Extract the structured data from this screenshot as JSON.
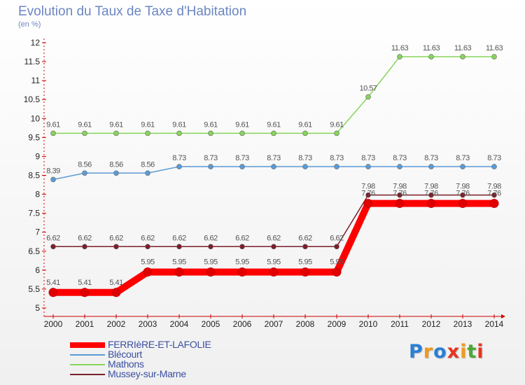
{
  "title": "Evolution du Taux de Taxe d'Habitation",
  "subtitle": "(en %)",
  "logo": {
    "letters": [
      "P",
      "r",
      "o",
      "x",
      "i",
      "t",
      "i"
    ],
    "colors": [
      "#2a7fd4",
      "#f19a1a",
      "#2a7fd4",
      "#e8331e",
      "#f19a1a",
      "#4aa832",
      "#e8331e"
    ]
  },
  "chart_data": {
    "type": "line",
    "title": "Evolution du Taux de Taxe d'Habitation",
    "ylabel": "(en %)",
    "xlabel": "",
    "x": [
      "2000",
      "2001",
      "2002",
      "2003",
      "2004",
      "2005",
      "2006",
      "2007",
      "2008",
      "2009",
      "2010",
      "2011",
      "2012",
      "2013",
      "2014"
    ],
    "ylim": [
      5,
      12
    ],
    "yticks": [
      "5",
      "5.5",
      "6",
      "6.5",
      "7",
      "7.5",
      "8",
      "8.5",
      "9",
      "9.5",
      "10",
      "10.5",
      "11",
      "11.5",
      "12"
    ],
    "grid": false,
    "legend_position": "bottom-left",
    "series": [
      {
        "name": "FERRIèRE-ET-LAFOLIE",
        "color": "#ff0000",
        "width": 10,
        "marker_r": 6,
        "values": [
          5.41,
          5.41,
          5.41,
          5.95,
          5.95,
          5.95,
          5.95,
          5.95,
          5.95,
          5.95,
          7.76,
          7.76,
          7.76,
          7.76,
          7.76
        ],
        "labels": [
          "5.41",
          "5.41",
          "5.41",
          "5.95",
          "5.95",
          "5.95",
          "5.95",
          "5.95",
          "5.95",
          "5.95",
          "7.76",
          "7.76",
          "7.76",
          "7.76",
          "7.76"
        ]
      },
      {
        "name": "Blécourt",
        "color": "#5b9bd5",
        "width": 1.5,
        "marker_r": 3.5,
        "values": [
          8.39,
          8.56,
          8.56,
          8.56,
          8.73,
          8.73,
          8.73,
          8.73,
          8.73,
          8.73,
          8.73,
          8.73,
          8.73,
          8.73,
          8.73
        ],
        "labels": [
          "8.39",
          "8.56",
          "8.56",
          "8.56",
          "8.73",
          "8.73",
          "8.73",
          "8.73",
          "8.73",
          "8.73",
          "8.73",
          "8.73",
          "8.73",
          "8.73",
          "8.73"
        ]
      },
      {
        "name": "Mathons",
        "color": "#86d55a",
        "width": 1.5,
        "marker_r": 3.5,
        "values": [
          9.61,
          9.61,
          9.61,
          9.61,
          9.61,
          9.61,
          9.61,
          9.61,
          9.61,
          9.61,
          10.57,
          11.63,
          11.63,
          11.63,
          11.63
        ],
        "labels": [
          "9.61",
          "9.61",
          "9.61",
          "9.61",
          "9.61",
          "9.61",
          "9.61",
          "9.61",
          "9.61",
          "9.61",
          "10.57",
          "11.63",
          "11.63",
          "11.63",
          "11.63"
        ]
      },
      {
        "name": "Mussey-sur-Marne",
        "color": "#7a1f2b",
        "width": 1.5,
        "marker_r": 3.5,
        "values": [
          6.62,
          6.62,
          6.62,
          6.62,
          6.62,
          6.62,
          6.62,
          6.62,
          6.62,
          6.62,
          7.98,
          7.98,
          7.98,
          7.98,
          7.98
        ],
        "labels": [
          "6.62",
          "6.62",
          "6.62",
          "6.62",
          "6.62",
          "6.62",
          "6.62",
          "6.62",
          "6.62",
          "6.62",
          "7.98",
          "7.98",
          "7.98",
          "7.98",
          "7.98"
        ]
      }
    ]
  }
}
